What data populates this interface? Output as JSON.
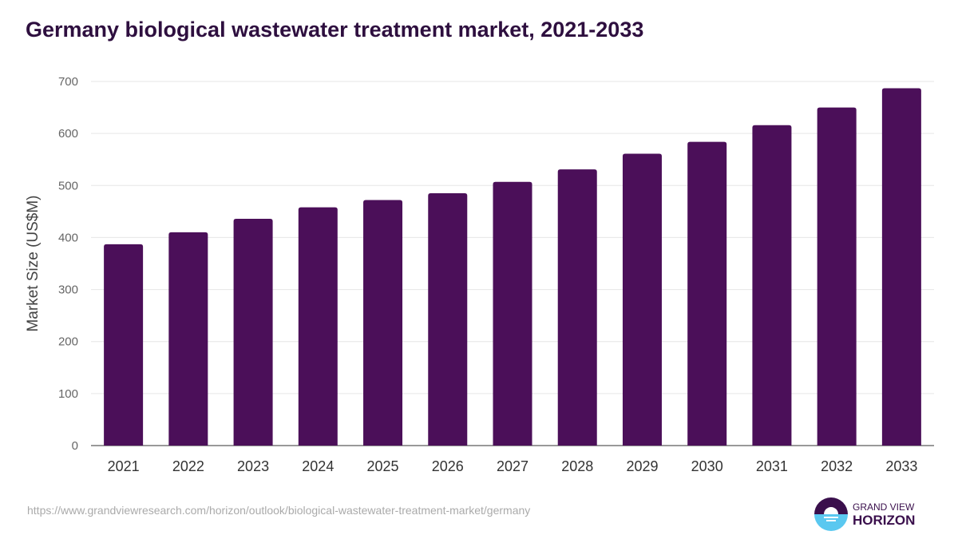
{
  "chart_data": {
    "type": "bar",
    "title": "Germany biological wastewater treatment market, 2021-2033",
    "xlabel": "",
    "ylabel": "Market Size (US$M)",
    "ylim": [
      0,
      700
    ],
    "yticks": [
      0,
      100,
      200,
      300,
      400,
      500,
      600,
      700
    ],
    "grid": true,
    "categories": [
      "2021",
      "2022",
      "2023",
      "2024",
      "2025",
      "2026",
      "2027",
      "2028",
      "2029",
      "2030",
      "2031",
      "2032",
      "2033"
    ],
    "values": [
      387,
      410,
      436,
      458,
      472,
      485,
      507,
      531,
      561,
      584,
      616,
      650,
      687
    ],
    "color": "#4b0f59"
  },
  "source": "https://www.grandviewresearch.com/horizon/outlook/biological-wastewater-treatment-market/germany",
  "logo": {
    "line1": "GRAND VIEW",
    "line2": "HORIZON"
  }
}
